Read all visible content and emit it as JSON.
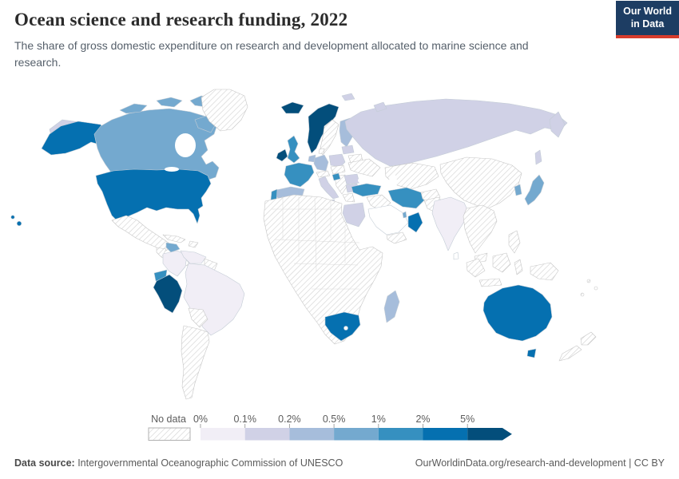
{
  "header": {
    "title": "Ocean science and research funding, 2022",
    "subtitle": "The share of gross domestic expenditure on research and development allocated to marine science and research.",
    "logo": {
      "line1": "Our World",
      "line2": "in Data"
    }
  },
  "brand": {
    "navy": "#1d3d63",
    "red": "#d73c2c"
  },
  "legend": {
    "no_data_label": "No data",
    "tick_labels": [
      "0%",
      "0.1%",
      "0.2%",
      "0.5%",
      "1%",
      "2%",
      "5%"
    ],
    "colors": [
      "#f1eef6",
      "#d0d1e6",
      "#a6bddb",
      "#74a9cf",
      "#3690c0",
      "#0570b0",
      "#034e7b"
    ],
    "text_color": "#5c5c5c"
  },
  "footer": {
    "source_label": "Data source:",
    "source_text": " Intergovernmental Oceanographic Commission of UNESCO",
    "link_text": "OurWorldinData.org/research-and-development",
    "license_text": " | CC BY"
  },
  "chart_data": {
    "type": "choropleth_map",
    "title": "Ocean science and research funding, 2022",
    "unit": "share of gross domestic R&D expenditure allocated to ocean science (%)",
    "legend_position": "bottom",
    "buckets": [
      "No data",
      "0-0.1%",
      "0.1-0.2%",
      "0.2-0.5%",
      "0.5-1%",
      "1-2%",
      "2-5%",
      "5%+"
    ],
    "countries": {
      "Peru": "5%+",
      "Norway": "5%+",
      "Iceland": "5%+",
      "Ireland": "5%+",
      "United States": "2-5%",
      "Australia": "2-5%",
      "South Africa": "2-5%",
      "Oman": "2-5%",
      "United Kingdom": "1-2%",
      "France": "1-2%",
      "Portugal": "1-2%",
      "Turkey": "1-2%",
      "Iran": "1-2%",
      "Ecuador": "1-2%",
      "Croatia": "1-2%",
      "Canada": "0.5-1%",
      "Japan": "0.5-1%",
      "South Korea": "0.5-1%",
      "Honduras": "0.5-1%",
      "Qatar": "0.5-1%",
      "Spain": "0.2-0.5%",
      "Finland": "0.2-0.5%",
      "Germany": "0.2-0.5%",
      "Netherlands": "0.2-0.5%",
      "Madagascar": "0.2-0.5%",
      "Russia": "0.1-0.2%",
      "Italy": "0.1-0.2%",
      "Poland": "0.1-0.2%",
      "Egypt": "0.1-0.2%",
      "Romania": "0.1-0.2%",
      "Bulgaria": "0.1-0.2%",
      "Estonia": "0.1-0.2%",
      "Brazil": "0-0.1%",
      "Colombia": "0-0.1%",
      "Venezuela": "0-0.1%",
      "India": "0-0.1%",
      "Bangladesh": "0-0.1%",
      "Greenland": "No data",
      "Mexico": "No data",
      "Guatemala": "No data",
      "Cuba": "No data",
      "Bolivia": "No data",
      "Argentina": "No data",
      "Sweden": "No data",
      "Denmark": "No data",
      "Ukraine": "No data",
      "Belarus": "No data",
      "Greece": "No data",
      "Kazakhstan": "No data",
      "Iraq": "No data",
      "Yemen": "No data",
      "Afghanistan": "No data",
      "Pakistan": "No data",
      "China": "No data",
      "Thailand": "No data",
      "Indonesia": "No data",
      "Philippines": "No data",
      "Papua New Guinea": "No data",
      "New Zealand": "No data"
    }
  }
}
